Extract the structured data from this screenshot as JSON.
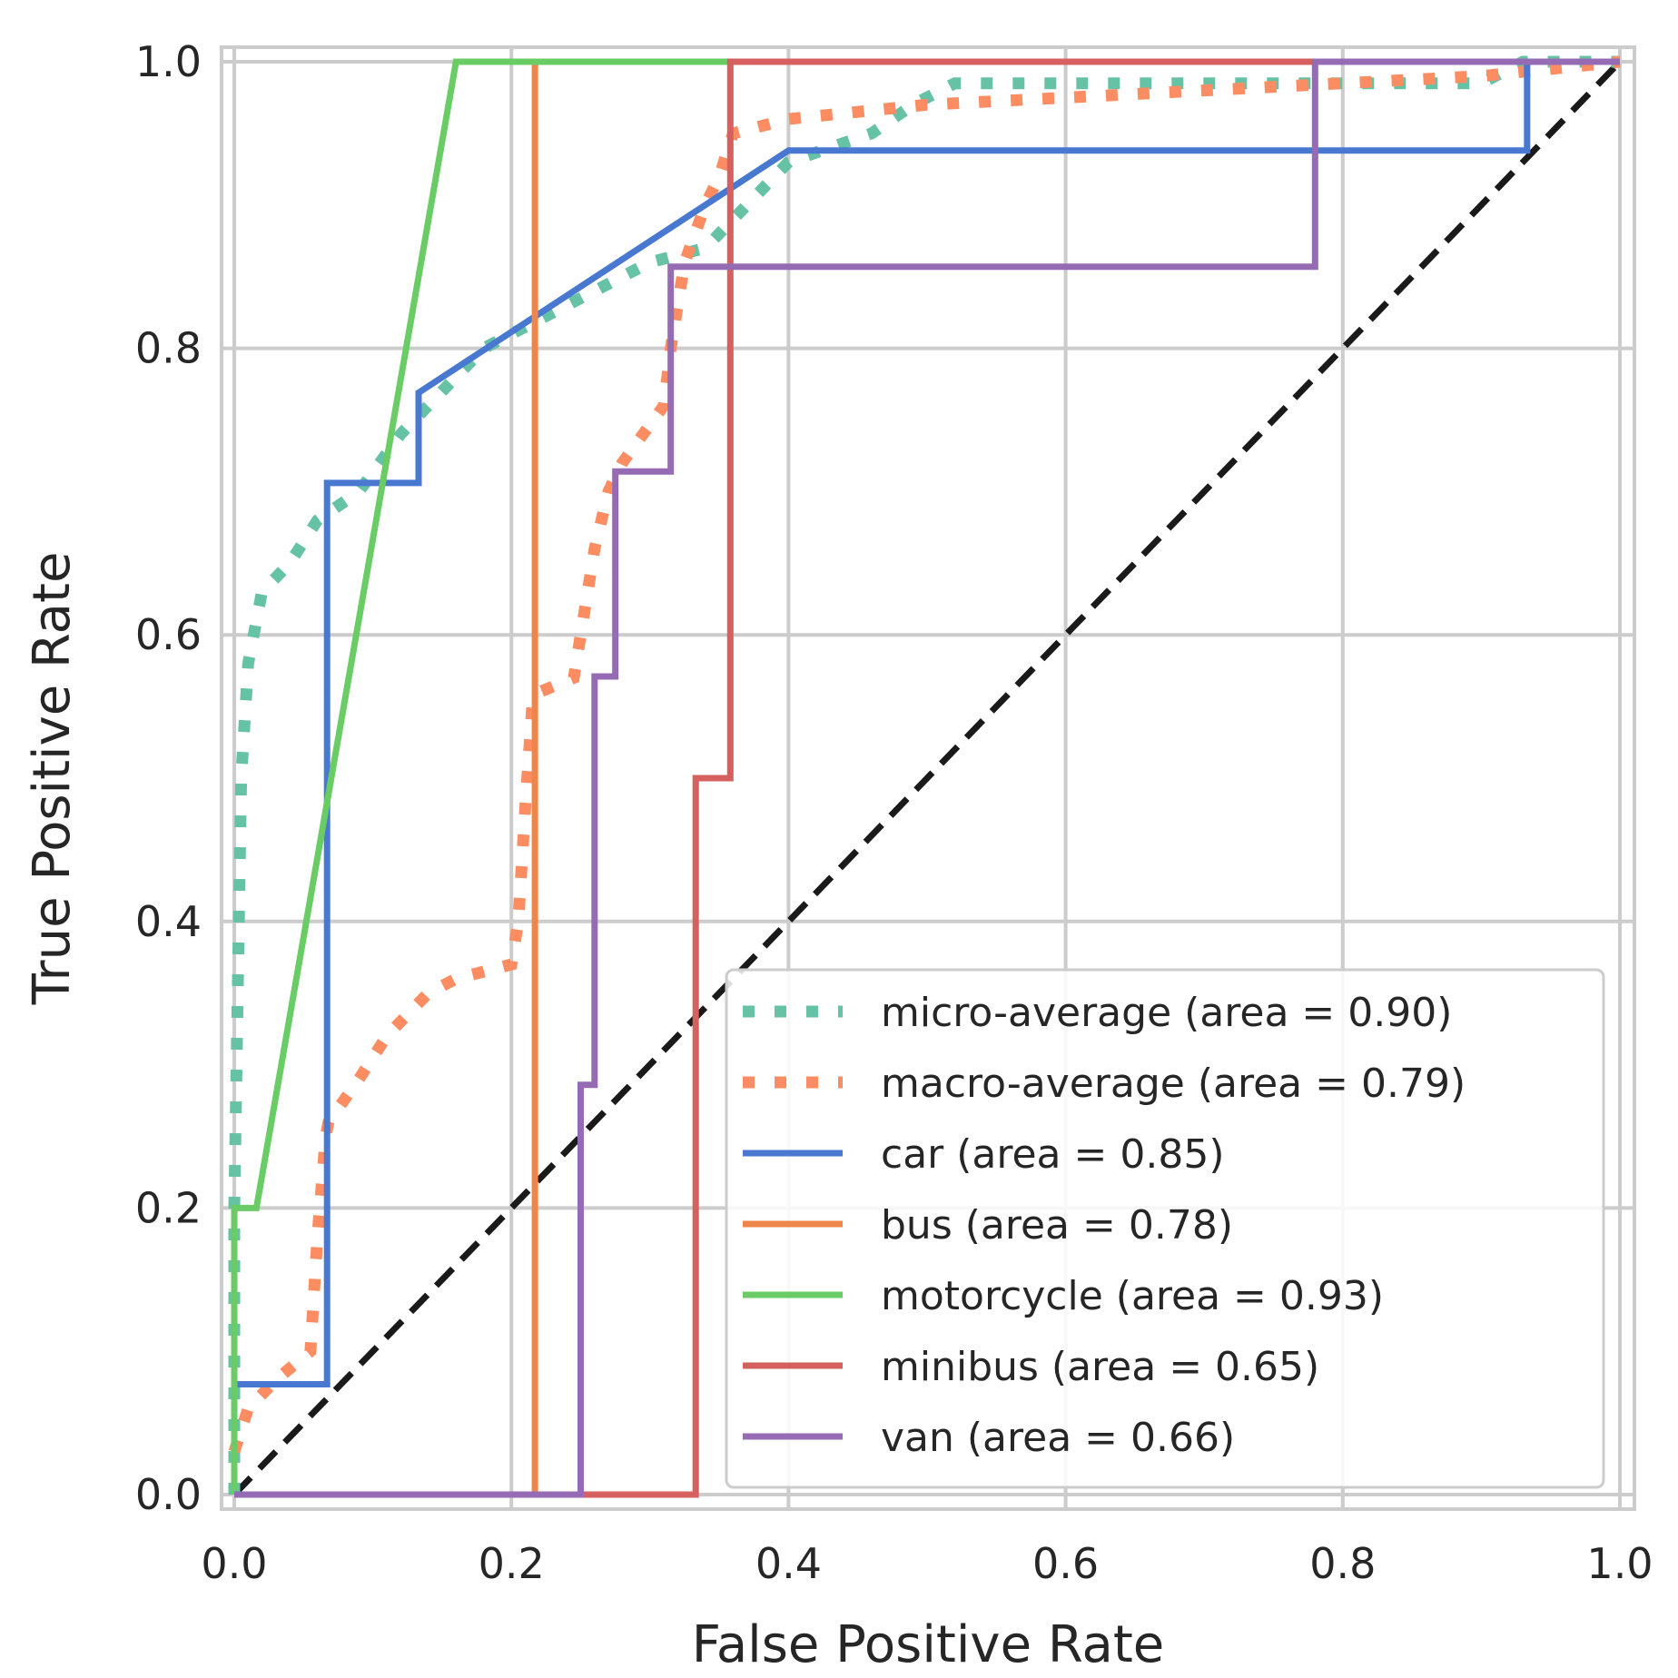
{
  "chart_data": {
    "type": "line",
    "title": "",
    "xlabel": "False Positive Rate",
    "ylabel": "True Positive Rate",
    "xlim": [
      0.0,
      1.0
    ],
    "ylim": [
      0.0,
      1.0
    ],
    "xticks": [
      "0.0",
      "0.2",
      "0.4",
      "0.6",
      "0.8",
      "1.0"
    ],
    "yticks": [
      "0.0",
      "0.2",
      "0.4",
      "0.6",
      "0.8",
      "1.0"
    ],
    "grid": true,
    "legend_position": "lower-right",
    "series": [
      {
        "name": "micro-average (area = 0.90)",
        "style": "dotted",
        "color": "#66c2a5",
        "x": [
          0.0,
          0.0,
          0.005,
          0.01,
          0.02,
          0.04,
          0.06,
          0.09,
          0.12,
          0.15,
          0.18,
          0.22,
          0.26,
          0.3,
          0.34,
          0.37,
          0.4,
          0.43,
          0.46,
          0.49,
          0.52,
          0.6,
          0.7,
          0.8,
          0.9,
          0.93,
          1.0
        ],
        "y": [
          0.0,
          0.2,
          0.5,
          0.58,
          0.63,
          0.65,
          0.68,
          0.7,
          0.74,
          0.77,
          0.8,
          0.82,
          0.84,
          0.86,
          0.87,
          0.9,
          0.93,
          0.94,
          0.95,
          0.97,
          0.985,
          0.985,
          0.985,
          0.985,
          0.985,
          1.0,
          1.0
        ]
      },
      {
        "name": "macro-average (area = 0.79)",
        "style": "dotted",
        "color": "#fc8d62",
        "x": [
          0.0,
          0.01,
          0.03,
          0.055,
          0.06,
          0.066,
          0.068,
          0.09,
          0.11,
          0.14,
          0.16,
          0.2,
          0.205,
          0.21,
          0.215,
          0.22,
          0.245,
          0.26,
          0.27,
          0.28,
          0.31,
          0.315,
          0.325,
          0.34,
          0.35,
          0.36,
          0.4,
          0.5,
          0.6,
          0.7,
          0.8,
          0.9,
          1.0
        ],
        "y": [
          0.03,
          0.06,
          0.08,
          0.1,
          0.18,
          0.25,
          0.26,
          0.29,
          0.32,
          0.35,
          0.36,
          0.37,
          0.4,
          0.48,
          0.55,
          0.56,
          0.57,
          0.66,
          0.7,
          0.72,
          0.76,
          0.8,
          0.86,
          0.9,
          0.92,
          0.95,
          0.96,
          0.97,
          0.975,
          0.98,
          0.985,
          0.99,
          1.0
        ]
      },
      {
        "name": " car (area = 0.85)",
        "style": "solid",
        "color": "#4878cf",
        "x": [
          0.0,
          0.0,
          0.067,
          0.067,
          0.133,
          0.133,
          0.4,
          0.4,
          0.933,
          0.933,
          1.0
        ],
        "y": [
          0.0,
          0.077,
          0.077,
          0.706,
          0.706,
          0.769,
          0.938,
          0.938,
          0.938,
          1.0,
          1.0
        ]
      },
      {
        "name": " bus (area = 0.78)",
        "style": "solid",
        "color": "#ee854a",
        "x": [
          0.0,
          0.217,
          0.217,
          1.0
        ],
        "y": [
          0.0,
          0.0,
          1.0,
          1.0
        ]
      },
      {
        "name": " motorcycle (area = 0.93)",
        "style": "solid",
        "color": "#6acc64",
        "x": [
          0.0,
          0.0,
          0.016,
          0.16,
          1.0
        ],
        "y": [
          0.0,
          0.2,
          0.2,
          1.0,
          1.0
        ]
      },
      {
        "name": " minibus (area = 0.65)",
        "style": "solid",
        "color": "#d65f5f",
        "x": [
          0.0,
          0.333,
          0.333,
          0.358,
          0.358,
          1.0
        ],
        "y": [
          0.0,
          0.0,
          0.5,
          0.5,
          1.0,
          1.0
        ]
      },
      {
        "name": " van (area = 0.66)",
        "style": "solid",
        "color": "#956cb4",
        "x": [
          0.0,
          0.25,
          0.25,
          0.26,
          0.26,
          0.275,
          0.275,
          0.315,
          0.315,
          0.78,
          0.78,
          1.0
        ],
        "y": [
          0.0,
          0.0,
          0.286,
          0.286,
          0.571,
          0.571,
          0.714,
          0.714,
          0.857,
          0.857,
          1.0,
          1.0
        ]
      }
    ],
    "reference_line": {
      "x": [
        0.0,
        1.0
      ],
      "y": [
        0.0,
        1.0
      ],
      "style": "dashed",
      "color": "#1a1a1a"
    }
  }
}
